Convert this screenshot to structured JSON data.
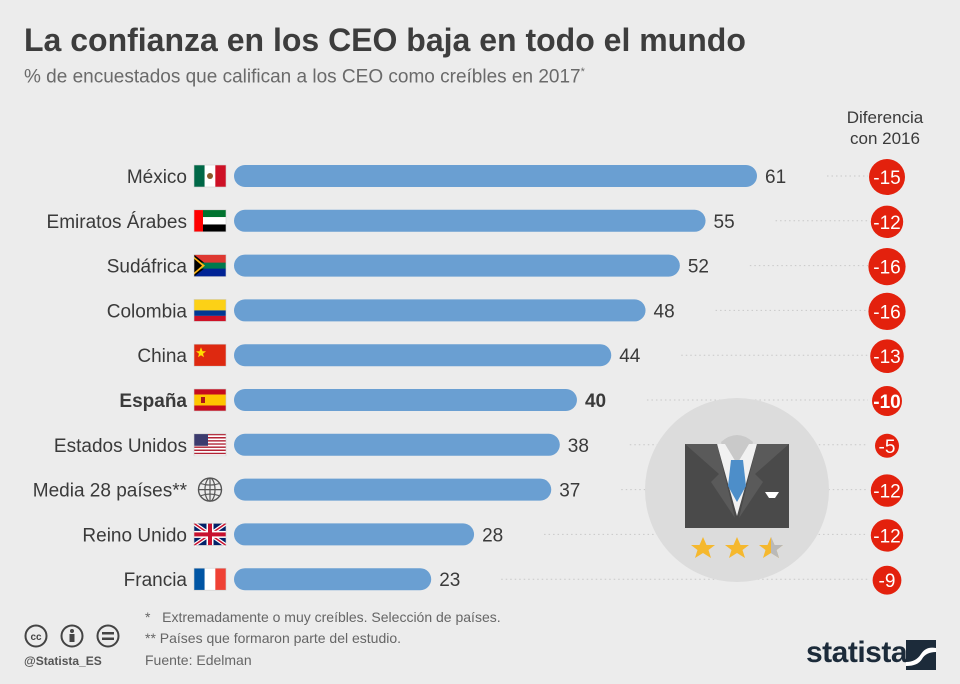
{
  "title": "La confianza en los CEO baja en todo el mundo",
  "subtitle": "% de encuestados que califican a los CEO como creíbles en 2017",
  "subtitle_mark": "*",
  "diff_header": [
    "Diferencia",
    "con 2016"
  ],
  "footnotes": [
    "*   Extremadamente o muy creíbles. Selección de países.",
    "** Países que formaron parte del estudio."
  ],
  "source": "Fuente: Edelman",
  "handle": "@Statista_ES",
  "logo": "statista",
  "colors": {
    "bar": "#6a9fd2",
    "diff": "#e3210d",
    "background": "#ececec"
  },
  "icons": {
    "license": [
      "cc-icon",
      "attribution-icon",
      "no-derivatives-icon"
    ],
    "illustration": "ceo-suit-icon",
    "rating": "three-star-rating-icon",
    "globe": "globe-icon"
  },
  "chart_data": {
    "type": "bar",
    "orientation": "horizontal",
    "categories": [
      "México",
      "Emiratos Árabes",
      "Sudáfrica",
      "Colombia",
      "China",
      "España",
      "Estados Unidos",
      "Media 28 países**",
      "Reino Unido",
      "Francia"
    ],
    "values": [
      61,
      55,
      52,
      48,
      44,
      40,
      38,
      37,
      28,
      23
    ],
    "value_labels": [
      "61",
      "55",
      "52",
      "48",
      "44",
      "40",
      "38",
      "37",
      "28",
      "23"
    ],
    "diff_values": [
      -15,
      -12,
      -16,
      -16,
      -13,
      -10,
      -5,
      -12,
      -12,
      -9
    ],
    "diff_labels": [
      "-15",
      "-12",
      "-16",
      "-16",
      "-13",
      "-10",
      "-5",
      "-12",
      "-12",
      "-9"
    ],
    "highlight": "España",
    "flags": [
      "mexico-flag-icon",
      "uae-flag-icon",
      "south-africa-flag-icon",
      "colombia-flag-icon",
      "china-flag-icon",
      "spain-flag-icon",
      "usa-flag-icon",
      "globe-icon",
      "uk-flag-icon",
      "france-flag-icon"
    ],
    "xlim": [
      0,
      61
    ]
  }
}
